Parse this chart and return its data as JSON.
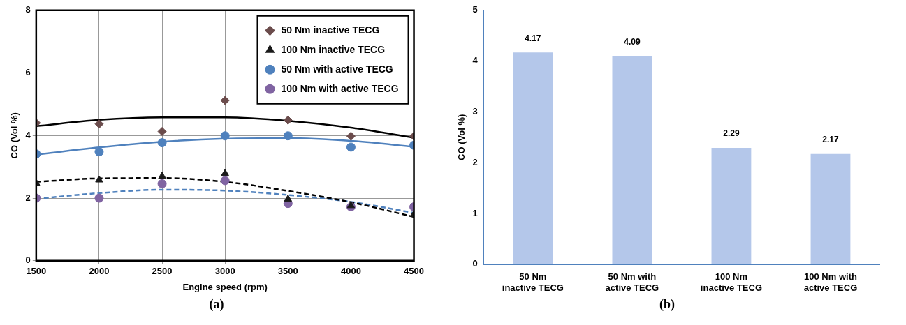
{
  "chart_data": [
    {
      "type": "scatter",
      "xlabel": "Engine speed (rpm)",
      "ylabel": "CO (Vol %)",
      "annotations": [
        "(a)"
      ],
      "x": [
        1500,
        2000,
        2500,
        3000,
        3500,
        4000,
        4500
      ],
      "xlim": [
        1500,
        4500
      ],
      "xticks": [
        1500,
        2000,
        2500,
        3000,
        3500,
        4000,
        4500
      ],
      "ylim": [
        0,
        8
      ],
      "yticks": [
        0,
        2,
        4,
        6,
        8
      ],
      "grid": true,
      "legend": "top right",
      "series": [
        {
          "name": "50 Nm inactive TECG",
          "color": "#6b4c4c",
          "marker": "diamond",
          "values": [
            4.4,
            4.37,
            4.13,
            5.12,
            4.49,
            3.98,
            3.98
          ]
        },
        {
          "name": "100 Nm inactive TECG",
          "color": "#1a1a1a",
          "marker": "triangle",
          "values": [
            2.48,
            2.58,
            2.7,
            2.79,
            1.97,
            1.76,
            1.48
          ]
        },
        {
          "name": "50 Nm with active TECG",
          "color": "#4f81bd",
          "marker": "circle",
          "values": [
            3.41,
            3.48,
            3.77,
            3.99,
            3.99,
            3.63,
            3.69
          ]
        },
        {
          "name": "100 Nm with active TECG",
          "color": "#8064a2",
          "marker": "circle",
          "values": [
            2.0,
            2.0,
            2.46,
            2.56,
            1.83,
            1.72,
            1.72
          ]
        },
        {
          "type": "line",
          "color": "#000000",
          "line_style": "solid",
          "values": [
            4.3,
            4.5,
            4.58,
            4.58,
            4.47,
            4.25,
            3.93
          ]
        },
        {
          "type": "line",
          "color": "#4f81bd",
          "line_style": "solid",
          "values": [
            3.39,
            3.62,
            3.8,
            3.9,
            3.92,
            3.83,
            3.64
          ]
        },
        {
          "type": "line",
          "color": "#000000",
          "line_style": "dashed",
          "values": [
            2.52,
            2.63,
            2.64,
            2.52,
            2.23,
            1.87,
            1.4
          ]
        },
        {
          "type": "line",
          "color": "#4f81bd",
          "line_style": "dashed",
          "values": [
            1.98,
            2.16,
            2.27,
            2.24,
            2.1,
            1.88,
            1.53
          ]
        }
      ]
    },
    {
      "type": "bar",
      "ylabel": "CO (Vol %)",
      "annotations": [
        "(b)"
      ],
      "categories": [
        "50 Nm inactive TECG",
        "50 Nm with active TECG",
        "100 Nm inactive TECG",
        "100 Nm with active TECG"
      ],
      "values": [
        4.17,
        4.09,
        2.29,
        2.17
      ],
      "color": "#b4c7ea",
      "ylim": [
        0,
        5
      ],
      "yticks": [
        0,
        1,
        2,
        3,
        4,
        5
      ],
      "grid": false,
      "data_labels": true
    }
  ]
}
